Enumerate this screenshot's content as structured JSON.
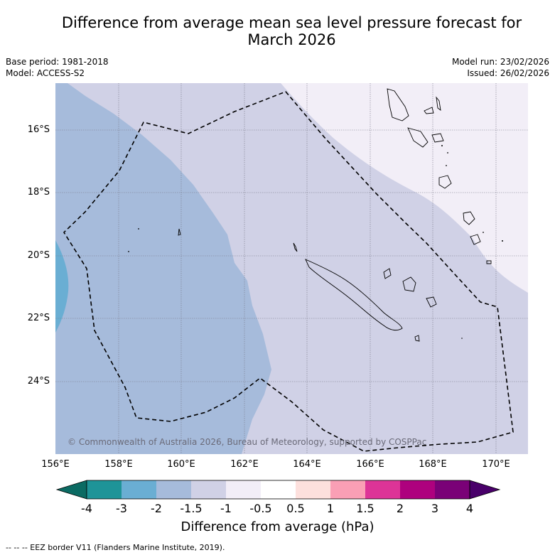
{
  "title_line1": "Difference from average mean sea level pressure forecast for",
  "title_line2": "March 2026",
  "base_period": "Base period: 1981-2018",
  "model": "Model: ACCESS-S2",
  "model_run": "Model run: 23/02/2026",
  "issued": "Issued: 26/02/2026",
  "copyright": "© Commonwealth of Australia 2026, Bureau of Meteorology, supported by COSPPac",
  "lat_labels": [
    "16°S",
    "18°S",
    "20°S",
    "22°S",
    "24°S"
  ],
  "lon_labels": [
    "156°E",
    "158°E",
    "160°E",
    "162°E",
    "164°E",
    "166°E",
    "168°E",
    "170°E"
  ],
  "colorbar": {
    "title": "Difference from average (hPa)",
    "tick_labels": [
      "-4",
      "-3",
      "-2",
      "-1.5",
      "-1",
      "-0.5",
      "0.5",
      "1",
      "1.5",
      "2",
      "3",
      "4"
    ],
    "colors": [
      "#0b6b63",
      "#1e9498",
      "#6aaed3",
      "#a6bbdb",
      "#d0d1e6",
      "#f2eef7",
      "#ffffff",
      "#fde0dd",
      "#fa9fb5",
      "#dd3497",
      "#ae017e",
      "#7a0177",
      "#49006a"
    ]
  },
  "legend_note": "--  --  -- EEZ border V11 (Flanders Marine Institute, 2019)."
}
